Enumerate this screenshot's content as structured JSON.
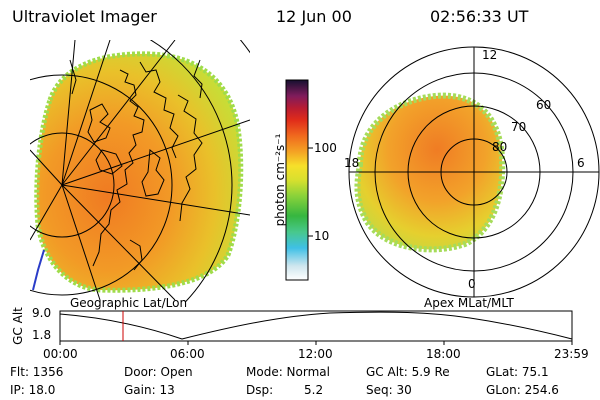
{
  "header": {
    "title": "Ultraviolet Imager",
    "date": "12 Jun 00",
    "time": "02:56:33 UT"
  },
  "colorbar": {
    "label": "photon cm⁻²s⁻¹",
    "ticks": [
      "100",
      "10"
    ]
  },
  "left_panel": {
    "caption": "Geographic Lat/Lon"
  },
  "right_panel": {
    "caption": "Apex MLat/MLT",
    "mlt_labels": {
      "top": "12",
      "left": "18",
      "right": "6",
      "bottom": "0"
    },
    "lat_labels": [
      "60",
      "70",
      "80"
    ]
  },
  "timeline": {
    "y_label": "GC Alt",
    "y_ticks": [
      "9.0",
      "1.8"
    ],
    "x_ticks": [
      "00:00",
      "06:00",
      "12:00",
      "18:00",
      "23:59"
    ],
    "marker_time": "02:56",
    "marker_color": "#cc0000"
  },
  "status": {
    "flt": "Flt: 1356",
    "ip": "IP: 18.0",
    "door": "Door: Open",
    "gain": "Gain: 13",
    "mode": "Mode: Normal",
    "dsp_label": "Dsp:",
    "dsp_value": "5.2",
    "gc_alt": "GC Alt: 5.9 Re",
    "seq": "Seq: 30",
    "glat": "GLat: 75.1",
    "glon": "GLon: 254.6"
  }
}
